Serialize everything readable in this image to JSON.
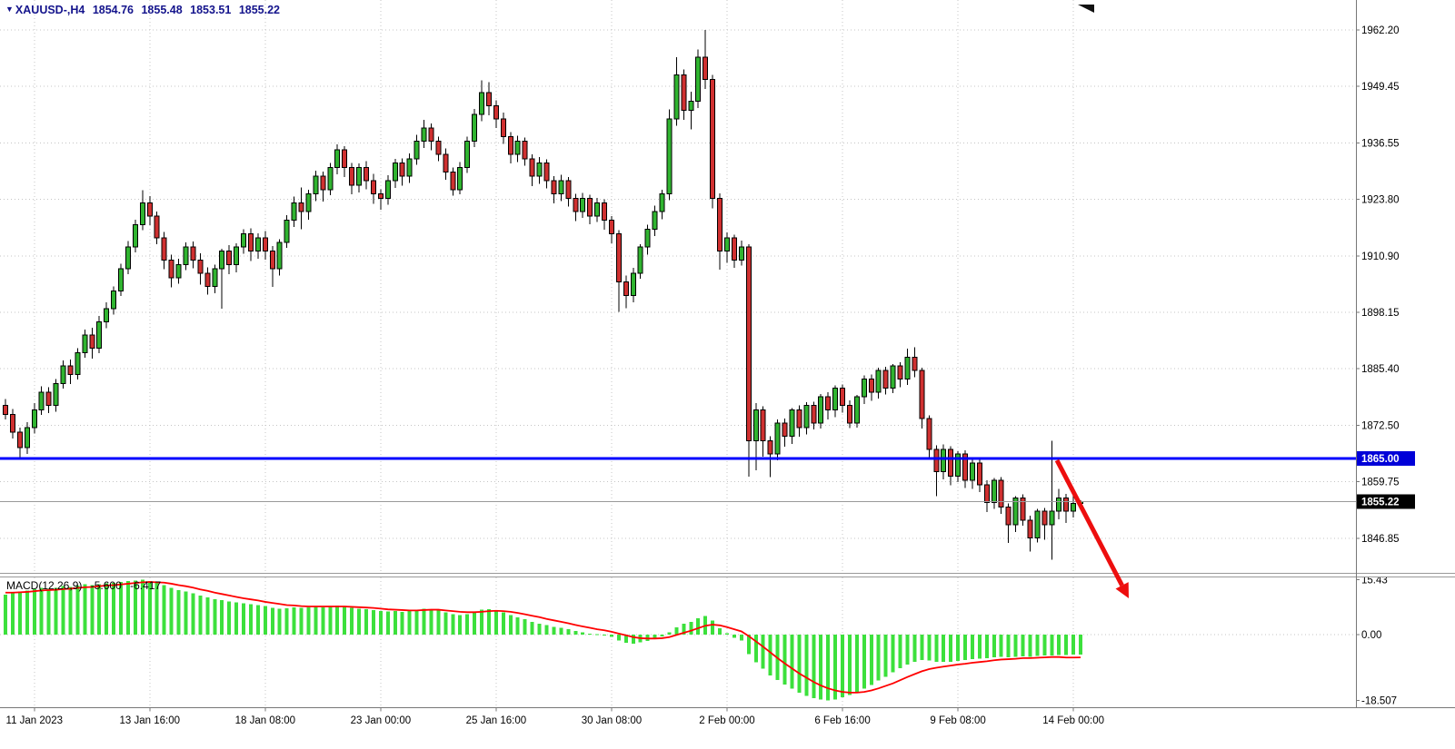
{
  "header": {
    "symbol_tf": "XAUUSD-,H4",
    "open": "1854.76",
    "high": "1855.48",
    "low": "1853.51",
    "close": "1855.22"
  },
  "icons": {
    "symbol_dropdown": "▼"
  },
  "chart_data": {
    "type": "candlestick",
    "title": "XAUUSD- H4 chart with MACD indicator and 1865.00 horizontal line, red down arrow annotation",
    "price_axis_ticks": [
      "1962.20",
      "1949.45",
      "1936.55",
      "1923.80",
      "1910.90",
      "1898.15",
      "1885.40",
      "1872.50",
      "1859.75",
      "1846.85"
    ],
    "time_axis_ticks": [
      {
        "index": 4,
        "label": "11 Jan 2023"
      },
      {
        "index": 20,
        "label": "13 Jan 16:00"
      },
      {
        "index": 36,
        "label": "18 Jan 08:00"
      },
      {
        "index": 52,
        "label": "23 Jan 00:00"
      },
      {
        "index": 68,
        "label": "25 Jan 16:00"
      },
      {
        "index": 84,
        "label": "30 Jan 08:00"
      },
      {
        "index": 100,
        "label": "2 Feb 00:00"
      },
      {
        "index": 116,
        "label": "6 Feb 16:00"
      },
      {
        "index": 132,
        "label": "9 Feb 08:00"
      },
      {
        "index": 148,
        "label": "14 Feb 00:00"
      }
    ],
    "candles": [
      [
        1877,
        1878.5,
        1873.8,
        1875
      ],
      [
        1875,
        1876.2,
        1869.5,
        1871
      ],
      [
        1871,
        1872,
        1864.8,
        1867.5
      ],
      [
        1867.5,
        1873.2,
        1866,
        1872
      ],
      [
        1872,
        1877.5,
        1870.6,
        1876
      ],
      [
        1876,
        1881.4,
        1874.9,
        1880
      ],
      [
        1880,
        1881.2,
        1875.3,
        1877
      ],
      [
        1877,
        1883,
        1875.6,
        1882
      ],
      [
        1882,
        1887.2,
        1880.8,
        1886
      ],
      [
        1886,
        1887.4,
        1881.9,
        1884
      ],
      [
        1884,
        1890,
        1882.9,
        1889
      ],
      [
        1889,
        1894.2,
        1887.8,
        1893
      ],
      [
        1893,
        1894.6,
        1887.6,
        1890
      ],
      [
        1890,
        1897.3,
        1888.9,
        1896
      ],
      [
        1896,
        1900.4,
        1894.5,
        1899
      ],
      [
        1899,
        1904,
        1897.6,
        1903
      ],
      [
        1903,
        1909.2,
        1901.9,
        1908
      ],
      [
        1908,
        1914.3,
        1906.8,
        1913
      ],
      [
        1913,
        1919.2,
        1911.7,
        1918
      ],
      [
        1918,
        1925.8,
        1916.8,
        1923
      ],
      [
        1923,
        1924.5,
        1917.9,
        1920
      ],
      [
        1920,
        1921,
        1913.6,
        1915
      ],
      [
        1915,
        1916.4,
        1907.9,
        1910
      ],
      [
        1910,
        1911.2,
        1903.8,
        1906
      ],
      [
        1906,
        1910.3,
        1904.6,
        1909
      ],
      [
        1909,
        1914,
        1907.7,
        1913
      ],
      [
        1913,
        1914.2,
        1908.1,
        1910
      ],
      [
        1910,
        1911.5,
        1904.4,
        1907
      ],
      [
        1907,
        1908.3,
        1902.2,
        1904
      ],
      [
        1904,
        1909,
        1902.5,
        1908
      ],
      [
        1908,
        1912.6,
        1899,
        1912
      ],
      [
        1912,
        1913.4,
        1906.8,
        1909
      ],
      [
        1909,
        1913.8,
        1907.2,
        1913
      ],
      [
        1913,
        1917,
        1911.4,
        1916
      ],
      [
        1916,
        1917.2,
        1909.8,
        1912
      ],
      [
        1912,
        1916.1,
        1910.3,
        1915
      ],
      [
        1915,
        1916.6,
        1910.1,
        1912
      ],
      [
        1912,
        1913.2,
        1903.9,
        1908
      ],
      [
        1908,
        1914.7,
        1906.5,
        1914
      ],
      [
        1914,
        1920.2,
        1912.8,
        1919
      ],
      [
        1919,
        1924.4,
        1917.5,
        1923
      ],
      [
        1923,
        1926.5,
        1917,
        1921
      ],
      [
        1921,
        1926,
        1919.2,
        1925
      ],
      [
        1925,
        1930.3,
        1923.4,
        1929
      ],
      [
        1929,
        1930.1,
        1923.3,
        1926
      ],
      [
        1926,
        1932,
        1924.7,
        1931
      ],
      [
        1931,
        1936.2,
        1929.5,
        1935
      ],
      [
        1935,
        1935.8,
        1928.8,
        1931
      ],
      [
        1931,
        1932,
        1924.9,
        1927
      ],
      [
        1927,
        1931.9,
        1925.3,
        1931
      ],
      [
        1931,
        1932.4,
        1926.1,
        1928
      ],
      [
        1928,
        1929.6,
        1922.8,
        1925
      ],
      [
        1925,
        1926.1,
        1921.4,
        1924
      ],
      [
        1924,
        1929.2,
        1922.6,
        1928
      ],
      [
        1928,
        1933,
        1926.4,
        1932
      ],
      [
        1932,
        1933.1,
        1926.9,
        1929
      ],
      [
        1929,
        1934.2,
        1927.5,
        1933
      ],
      [
        1933,
        1938.4,
        1931.6,
        1937
      ],
      [
        1937,
        1941.8,
        1935.4,
        1940
      ],
      [
        1940,
        1941,
        1934.9,
        1937
      ],
      [
        1937,
        1938,
        1932.4,
        1934
      ],
      [
        1934,
        1935.3,
        1928.2,
        1930
      ],
      [
        1930,
        1931,
        1924.6,
        1926
      ],
      [
        1926,
        1932.2,
        1924.9,
        1931
      ],
      [
        1931,
        1938,
        1929.8,
        1937
      ],
      [
        1937,
        1944.3,
        1935.6,
        1943
      ],
      [
        1943,
        1950.8,
        1941.5,
        1948
      ],
      [
        1948,
        1950.4,
        1942.8,
        1945
      ],
      [
        1945,
        1946.2,
        1940,
        1942
      ],
      [
        1942,
        1943.5,
        1936.4,
        1938
      ],
      [
        1938,
        1939,
        1931.9,
        1934
      ],
      [
        1934,
        1938.2,
        1932.2,
        1937
      ],
      [
        1937,
        1937.8,
        1931.4,
        1933
      ],
      [
        1933,
        1934,
        1926.8,
        1929
      ],
      [
        1929,
        1933.4,
        1927.3,
        1932
      ],
      [
        1932,
        1932.8,
        1926.3,
        1928
      ],
      [
        1928,
        1929,
        1922.9,
        1925
      ],
      [
        1925,
        1929.3,
        1923.4,
        1928
      ],
      [
        1928,
        1928.8,
        1922.1,
        1924
      ],
      [
        1924,
        1925,
        1918.8,
        1921
      ],
      [
        1921,
        1925.2,
        1919.6,
        1924
      ],
      [
        1924,
        1924.8,
        1918.1,
        1920
      ],
      [
        1920,
        1924.1,
        1918.6,
        1923
      ],
      [
        1923,
        1923.8,
        1916.9,
        1919
      ],
      [
        1919,
        1920,
        1913.8,
        1916
      ],
      [
        1916,
        1916.8,
        1898.3,
        1905
      ],
      [
        1905,
        1906.5,
        1899.1,
        1902
      ],
      [
        1902,
        1908.2,
        1900.4,
        1907
      ],
      [
        1907,
        1913.6,
        1905.8,
        1913
      ],
      [
        1913,
        1918,
        1911.2,
        1917
      ],
      [
        1917,
        1922.3,
        1915.4,
        1921
      ],
      [
        1921,
        1926,
        1919.3,
        1925
      ],
      [
        1925,
        1944.2,
        1923.6,
        1942
      ],
      [
        1942,
        1956,
        1940.5,
        1952
      ],
      [
        1952,
        1953.2,
        1941.8,
        1944
      ],
      [
        1944,
        1948.2,
        1939.6,
        1946
      ],
      [
        1946,
        1957.8,
        1944.5,
        1956
      ],
      [
        1956,
        1962.2,
        1948.8,
        1951
      ],
      [
        1951,
        1952,
        1921.7,
        1924
      ],
      [
        1924,
        1925.1,
        1907.8,
        1912
      ],
      [
        1912,
        1916.3,
        1909.4,
        1915
      ],
      [
        1915,
        1915.8,
        1908.2,
        1910
      ],
      [
        1910,
        1914.4,
        1908.8,
        1913
      ],
      [
        1913,
        1913.6,
        1860.9,
        1869
      ],
      [
        1869,
        1877.6,
        1862.3,
        1876
      ],
      [
        1876,
        1876.8,
        1865.4,
        1869
      ],
      [
        1869,
        1870,
        1860.8,
        1866
      ],
      [
        1866,
        1873.8,
        1864.6,
        1873
      ],
      [
        1873,
        1874,
        1867.7,
        1870
      ],
      [
        1870,
        1876.4,
        1868.3,
        1876
      ],
      [
        1876,
        1877,
        1869.9,
        1872
      ],
      [
        1872,
        1877.8,
        1870.4,
        1877
      ],
      [
        1877,
        1877.9,
        1871.6,
        1873
      ],
      [
        1873,
        1879.6,
        1871.8,
        1879
      ],
      [
        1879,
        1880,
        1873.8,
        1876
      ],
      [
        1876,
        1881.6,
        1874.4,
        1881
      ],
      [
        1881,
        1881.8,
        1875.4,
        1877
      ],
      [
        1877,
        1878.2,
        1871.9,
        1873
      ],
      [
        1873,
        1879.4,
        1872,
        1879
      ],
      [
        1879,
        1883.8,
        1877.3,
        1883
      ],
      [
        1883,
        1884,
        1878.1,
        1880
      ],
      [
        1880,
        1885.6,
        1878.6,
        1885
      ],
      [
        1885,
        1885.8,
        1879.5,
        1881
      ],
      [
        1881,
        1886.4,
        1879.8,
        1886
      ],
      [
        1886,
        1886.8,
        1881.2,
        1883
      ],
      [
        1883,
        1889.9,
        1881.7,
        1888
      ],
      [
        1888,
        1890.2,
        1883.4,
        1885
      ],
      [
        1885,
        1885.6,
        1871.8,
        1874
      ],
      [
        1874,
        1874.8,
        1864.9,
        1867
      ],
      [
        1867,
        1868,
        1856.4,
        1862
      ],
      [
        1862,
        1868.2,
        1860.3,
        1867
      ],
      [
        1867,
        1867.8,
        1858.9,
        1861
      ],
      [
        1861,
        1866.6,
        1859.6,
        1866
      ],
      [
        1866,
        1866.8,
        1858.3,
        1860
      ],
      [
        1860,
        1864.9,
        1858.1,
        1864
      ],
      [
        1864,
        1864.8,
        1857.4,
        1859
      ],
      [
        1859,
        1860,
        1852.8,
        1855
      ],
      [
        1855,
        1860.6,
        1853.6,
        1860
      ],
      [
        1860,
        1860.8,
        1852.4,
        1854
      ],
      [
        1854,
        1854.8,
        1845.8,
        1850
      ],
      [
        1850,
        1856.4,
        1848.3,
        1856
      ],
      [
        1856,
        1856.8,
        1849.7,
        1851
      ],
      [
        1851,
        1852,
        1843.9,
        1847
      ],
      [
        1847,
        1853.6,
        1845.9,
        1853
      ],
      [
        1853,
        1853.8,
        1846.6,
        1850
      ],
      [
        1850,
        1869,
        1842,
        1853
      ],
      [
        1853,
        1858.1,
        1851.2,
        1856
      ],
      [
        1856,
        1857,
        1850.4,
        1853
      ],
      [
        1853,
        1857.9,
        1851.6,
        1854.8
      ],
      [
        1854.8,
        1855.5,
        1853.5,
        1855.2
      ]
    ],
    "horizontal_line": {
      "price": 1865.0,
      "label": "1865.00"
    },
    "current_price": {
      "value": 1855.22,
      "label": "1855.22"
    },
    "macd": {
      "label": "MACD(12,26,9)",
      "macd_value": "-5.600",
      "signal_value": "-6.417",
      "axis_ticks": [
        {
          "v": 15.43,
          "label": "15.43"
        },
        {
          "v": 0,
          "label": "0.00"
        },
        {
          "v": -18.507,
          "label": "-18.507"
        }
      ],
      "histogram": [
        11.2,
        11.8,
        12.1,
        12.4,
        12.8,
        13.1,
        12.9,
        13.2,
        13.6,
        13.4,
        13.8,
        14.1,
        13.9,
        14.2,
        14.4,
        14.6,
        14.8,
        15.0,
        15.2,
        15.43,
        15.1,
        14.6,
        13.9,
        13.1,
        12.5,
        12.1,
        11.6,
        11.0,
        10.4,
        10.0,
        9.7,
        9.3,
        9.0,
        8.8,
        8.5,
        8.3,
        8.0,
        7.5,
        7.3,
        7.4,
        7.6,
        7.5,
        7.6,
        7.8,
        7.7,
        7.9,
        8.1,
        7.9,
        7.5,
        7.3,
        7.2,
        6.9,
        6.6,
        6.5,
        6.6,
        6.4,
        6.6,
        6.9,
        7.3,
        7.2,
        6.8,
        6.3,
        5.7,
        5.5,
        5.8,
        6.4,
        7.0,
        7.2,
        6.9,
        6.3,
        5.5,
        4.9,
        4.3,
        3.6,
        3.1,
        2.7,
        2.2,
        1.9,
        1.5,
        1.0,
        0.7,
        0.3,
        0.1,
        -0.2,
        -0.7,
        -1.6,
        -2.3,
        -2.5,
        -2.2,
        -1.8,
        -1.2,
        -0.5,
        0.6,
        2.1,
        3.0,
        3.6,
        4.6,
        5.2,
        3.9,
        1.8,
        0.4,
        -0.9,
        -1.7,
        -5.5,
        -7.8,
        -9.6,
        -11.5,
        -12.8,
        -14.0,
        -15.2,
        -16.3,
        -17.2,
        -17.9,
        -18.3,
        -18.507,
        -18.2,
        -17.6,
        -17.0,
        -16.2,
        -15.2,
        -14.1,
        -12.9,
        -11.8,
        -10.6,
        -9.5,
        -8.4,
        -7.6,
        -7.2,
        -7.3,
        -7.6,
        -7.7,
        -7.6,
        -7.4,
        -7.2,
        -6.9,
        -6.7,
        -6.6,
        -6.4,
        -6.3,
        -6.4,
        -6.3,
        -6.1,
        -6.2,
        -6.0,
        -5.9,
        -5.9,
        -5.8,
        -5.7,
        -5.65,
        -5.6
      ],
      "signal": [
        11.8,
        11.8,
        11.9,
        12.0,
        12.2,
        12.4,
        12.5,
        12.6,
        12.8,
        12.9,
        13.1,
        13.3,
        13.4,
        13.6,
        13.8,
        13.9,
        14.1,
        14.3,
        14.5,
        14.7,
        14.8,
        14.7,
        14.6,
        14.3,
        13.9,
        13.6,
        13.2,
        12.7,
        12.3,
        11.8,
        11.4,
        11.0,
        10.6,
        10.2,
        9.9,
        9.6,
        9.2,
        8.9,
        8.6,
        8.3,
        8.2,
        8.0,
        7.9,
        7.9,
        7.9,
        7.9,
        7.9,
        7.9,
        7.8,
        7.7,
        7.6,
        7.5,
        7.3,
        7.1,
        7.0,
        6.9,
        6.8,
        6.8,
        6.9,
        7.0,
        7.0,
        6.8,
        6.6,
        6.4,
        6.3,
        6.3,
        6.4,
        6.6,
        6.7,
        6.6,
        6.4,
        6.1,
        5.7,
        5.3,
        4.9,
        4.4,
        4.0,
        3.6,
        3.2,
        2.7,
        2.3,
        1.9,
        1.5,
        1.2,
        0.8,
        0.3,
        -0.2,
        -0.7,
        -1.0,
        -1.1,
        -1.1,
        -1.0,
        -0.7,
        -0.1,
        0.5,
        1.1,
        1.8,
        2.5,
        2.8,
        2.6,
        2.1,
        1.5,
        0.9,
        -0.4,
        -1.9,
        -3.4,
        -5.0,
        -6.6,
        -8.1,
        -9.5,
        -10.9,
        -12.1,
        -13.3,
        -14.3,
        -15.1,
        -15.7,
        -16.1,
        -16.3,
        -16.3,
        -16.1,
        -15.7,
        -15.1,
        -14.4,
        -13.7,
        -12.8,
        -11.9,
        -11.1,
        -10.3,
        -9.7,
        -9.3,
        -9.0,
        -8.7,
        -8.4,
        -8.2,
        -7.9,
        -7.7,
        -7.5,
        -7.2,
        -7.0,
        -6.9,
        -6.8,
        -6.6,
        -6.6,
        -6.5,
        -6.4,
        -6.3,
        -6.3,
        -6.45,
        -6.44,
        -6.417
      ]
    },
    "annotations": {
      "arrow": {
        "shape": "arrow",
        "direction": "down-right"
      }
    },
    "colors": {
      "bull": "#30b430",
      "bear": "#cf3030",
      "outline": "#000000",
      "histogram": "#3ce03c",
      "signal": "#ff0000",
      "hline": "#0000ff",
      "hline_badge": "#0000d8",
      "price_badge": "#000000",
      "grid": "#c4c4c4",
      "separator": "#999999",
      "frame": "#777777",
      "arrow": "#ed0e0e",
      "header_text": "#14148c",
      "axis_text": "#000000",
      "background": "#ffffff"
    }
  }
}
